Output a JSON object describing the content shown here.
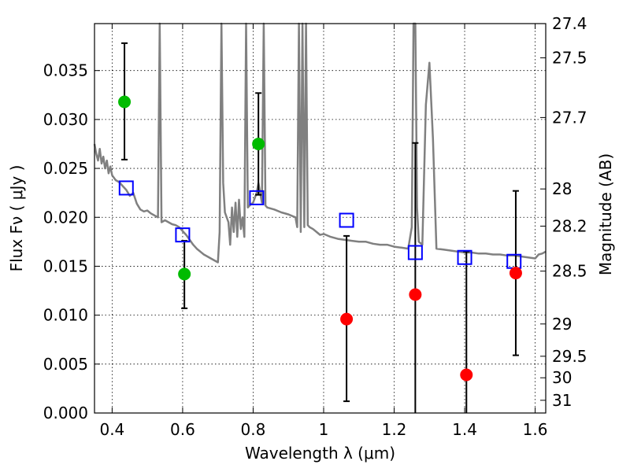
{
  "chart_data": {
    "type": "scatter",
    "xlabel": "Wavelength  λ (μm)",
    "ylabel": "Flux  Fν  ( μJy )",
    "ylabel_right": "Magnitude (AB)",
    "xlim": [
      0.35,
      1.63
    ],
    "ylim": [
      0.0,
      0.0398
    ],
    "grid": true,
    "x_ticks": [
      0.4,
      0.6,
      0.8,
      1.0,
      1.2,
      1.4,
      1.6
    ],
    "x_tick_labels": [
      "0.4",
      "0.6",
      "0.8",
      "1",
      "1.2",
      "1.4",
      "1.6"
    ],
    "y_ticks": [
      0.0,
      0.005,
      0.01,
      0.015,
      0.02,
      0.025,
      0.03,
      0.035
    ],
    "y_tick_labels": [
      "0.000",
      "0.005",
      "0.010",
      "0.015",
      "0.020",
      "0.025",
      "0.030",
      "0.035"
    ],
    "right_ticks": [
      {
        "label": "27.4",
        "flux": 0.0398
      },
      {
        "label": "27.5",
        "flux": 0.0363
      },
      {
        "label": "27.7",
        "flux": 0.0302
      },
      {
        "label": "28",
        "flux": 0.0229
      },
      {
        "label": "28.2",
        "flux": 0.0191
      },
      {
        "label": "28.5",
        "flux": 0.0145
      },
      {
        "label": "29",
        "flux": 0.0091
      },
      {
        "label": "29.5",
        "flux": 0.0058
      },
      {
        "label": "30",
        "flux": 0.0036
      },
      {
        "label": "31",
        "flux": 0.0013
      }
    ],
    "colors": {
      "model": "#808080",
      "model_points": "#0000ff",
      "green": "#00bb00",
      "red": "#ff0000",
      "errorbar": "#000000"
    },
    "model_spectrum": [
      [
        0.35,
        0.0275
      ],
      [
        0.355,
        0.0265
      ],
      [
        0.36,
        0.0258
      ],
      [
        0.365,
        0.027
      ],
      [
        0.37,
        0.0255
      ],
      [
        0.375,
        0.0262
      ],
      [
        0.38,
        0.025
      ],
      [
        0.385,
        0.0258
      ],
      [
        0.39,
        0.0245
      ],
      [
        0.395,
        0.0252
      ],
      [
        0.4,
        0.0243
      ],
      [
        0.41,
        0.0238
      ],
      [
        0.42,
        0.0236
      ],
      [
        0.43,
        0.0232
      ],
      [
        0.44,
        0.0228
      ],
      [
        0.45,
        0.0222
      ],
      [
        0.46,
        0.0225
      ],
      [
        0.47,
        0.0214
      ],
      [
        0.48,
        0.0208
      ],
      [
        0.49,
        0.0206
      ],
      [
        0.5,
        0.0207
      ],
      [
        0.51,
        0.0204
      ],
      [
        0.52,
        0.0202
      ],
      [
        0.53,
        0.02
      ],
      [
        0.535,
        0.0398
      ],
      [
        0.54,
        0.0195
      ],
      [
        0.55,
        0.0197
      ],
      [
        0.56,
        0.0195
      ],
      [
        0.57,
        0.0193
      ],
      [
        0.58,
        0.0192
      ],
      [
        0.59,
        0.019
      ],
      [
        0.6,
        0.0186
      ],
      [
        0.61,
        0.0182
      ],
      [
        0.62,
        0.0177
      ],
      [
        0.63,
        0.0172
      ],
      [
        0.64,
        0.0168
      ],
      [
        0.65,
        0.0165
      ],
      [
        0.66,
        0.0162
      ],
      [
        0.67,
        0.016
      ],
      [
        0.68,
        0.0158
      ],
      [
        0.69,
        0.0156
      ],
      [
        0.7,
        0.0154
      ],
      [
        0.705,
        0.0185
      ],
      [
        0.71,
        0.0398
      ],
      [
        0.715,
        0.0235
      ],
      [
        0.72,
        0.0205
      ],
      [
        0.73,
        0.0195
      ],
      [
        0.735,
        0.0172
      ],
      [
        0.74,
        0.021
      ],
      [
        0.745,
        0.0185
      ],
      [
        0.75,
        0.0215
      ],
      [
        0.755,
        0.018
      ],
      [
        0.76,
        0.0218
      ],
      [
        0.765,
        0.0188
      ],
      [
        0.77,
        0.02
      ],
      [
        0.775,
        0.018
      ],
      [
        0.78,
        0.0398
      ],
      [
        0.785,
        0.021
      ],
      [
        0.79,
        0.0212
      ],
      [
        0.8,
        0.0215
      ],
      [
        0.81,
        0.0225
      ],
      [
        0.815,
        0.0235
      ],
      [
        0.82,
        0.0225
      ],
      [
        0.825,
        0.0215
      ],
      [
        0.83,
        0.0398
      ],
      [
        0.835,
        0.0212
      ],
      [
        0.84,
        0.021
      ],
      [
        0.86,
        0.0208
      ],
      [
        0.88,
        0.0205
      ],
      [
        0.9,
        0.0203
      ],
      [
        0.92,
        0.02
      ],
      [
        0.925,
        0.019
      ],
      [
        0.93,
        0.0398
      ],
      [
        0.935,
        0.0185
      ],
      [
        0.94,
        0.0398
      ],
      [
        0.945,
        0.019
      ],
      [
        0.95,
        0.0398
      ],
      [
        0.955,
        0.0192
      ],
      [
        0.96,
        0.019
      ],
      [
        0.97,
        0.0188
      ],
      [
        0.98,
        0.0185
      ],
      [
        0.99,
        0.0182
      ],
      [
        1.0,
        0.0183
      ],
      [
        1.02,
        0.018
      ],
      [
        1.04,
        0.0178
      ],
      [
        1.06,
        0.0177
      ],
      [
        1.08,
        0.0176
      ],
      [
        1.1,
        0.0175
      ],
      [
        1.12,
        0.0175
      ],
      [
        1.14,
        0.0173
      ],
      [
        1.16,
        0.0172
      ],
      [
        1.18,
        0.0172
      ],
      [
        1.2,
        0.017
      ],
      [
        1.22,
        0.0169
      ],
      [
        1.24,
        0.0168
      ],
      [
        1.25,
        0.019
      ],
      [
        1.255,
        0.0398
      ],
      [
        1.26,
        0.0398
      ],
      [
        1.265,
        0.021
      ],
      [
        1.27,
        0.0175
      ],
      [
        1.28,
        0.0172
      ],
      [
        1.29,
        0.0315
      ],
      [
        1.3,
        0.0358
      ],
      [
        1.31,
        0.028
      ],
      [
        1.32,
        0.0168
      ],
      [
        1.34,
        0.0167
      ],
      [
        1.36,
        0.0166
      ],
      [
        1.38,
        0.0165
      ],
      [
        1.4,
        0.0164
      ],
      [
        1.42,
        0.0164
      ],
      [
        1.44,
        0.0163
      ],
      [
        1.46,
        0.0163
      ],
      [
        1.48,
        0.0162
      ],
      [
        1.5,
        0.0162
      ],
      [
        1.52,
        0.0161
      ],
      [
        1.54,
        0.0161
      ],
      [
        1.56,
        0.016
      ],
      [
        1.58,
        0.0159
      ],
      [
        1.6,
        0.0158
      ],
      [
        1.61,
        0.0162
      ],
      [
        1.62,
        0.0163
      ],
      [
        1.63,
        0.0165
      ]
    ],
    "model_points": [
      {
        "x": 0.44,
        "y": 0.023
      },
      {
        "x": 0.6,
        "y": 0.0182
      },
      {
        "x": 0.81,
        "y": 0.022
      },
      {
        "x": 1.065,
        "y": 0.0197
      },
      {
        "x": 1.26,
        "y": 0.0164
      },
      {
        "x": 1.4,
        "y": 0.0159
      },
      {
        "x": 1.54,
        "y": 0.0155
      }
    ],
    "observations": [
      {
        "x": 0.435,
        "y": 0.0318,
        "err_low": 0.0259,
        "err_high": 0.0378,
        "color": "green"
      },
      {
        "x": 0.605,
        "y": 0.0142,
        "err_low": 0.0107,
        "err_high": 0.0176,
        "color": "green"
      },
      {
        "x": 0.815,
        "y": 0.0275,
        "err_low": 0.0223,
        "err_high": 0.0327,
        "color": "green"
      },
      {
        "x": 1.065,
        "y": 0.0096,
        "err_low": 0.0012,
        "err_high": 0.0181,
        "color": "red"
      },
      {
        "x": 1.26,
        "y": 0.0121,
        "err_low": 0.0,
        "err_high": 0.0276,
        "color": "red"
      },
      {
        "x": 1.405,
        "y": 0.0039,
        "err_low": 0.0,
        "err_high": 0.0165,
        "color": "red"
      },
      {
        "x": 1.545,
        "y": 0.0143,
        "err_low": 0.0059,
        "err_high": 0.0227,
        "color": "red"
      }
    ]
  }
}
